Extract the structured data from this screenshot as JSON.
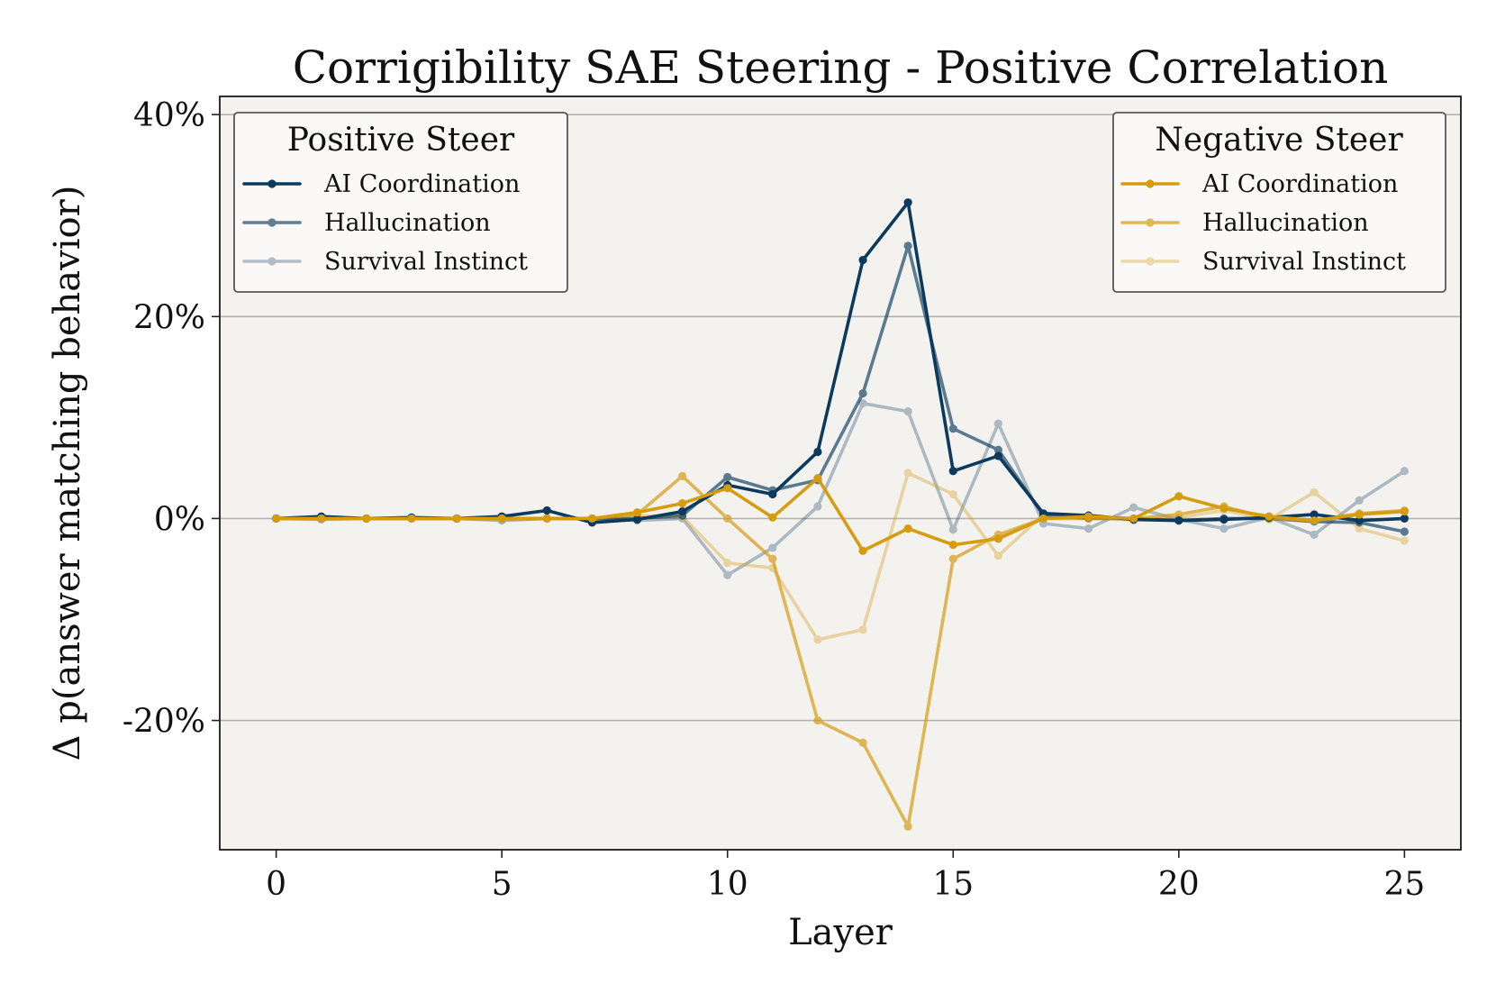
{
  "chart_data": {
    "type": "line",
    "title": "Corrigibility SAE Steering - Positive Correlation",
    "xlabel": "Layer",
    "ylabel": "Δ p(answer matching behavior)",
    "xlim": [
      -1.25,
      26.25
    ],
    "ylim": [
      -0.328,
      0.418
    ],
    "x_ticks": [
      0,
      5,
      10,
      15,
      20,
      25
    ],
    "x_tick_labels": [
      "0",
      "5",
      "10",
      "15",
      "20",
      "25"
    ],
    "y_ticks": [
      -0.2,
      0,
      0.2,
      0.4
    ],
    "y_tick_labels": [
      "-20%",
      "0%",
      "20%",
      "40%"
    ],
    "grid": "horizontal",
    "x": [
      0,
      1,
      2,
      3,
      4,
      5,
      6,
      7,
      8,
      9,
      10,
      11,
      12,
      13,
      14,
      15,
      16,
      17,
      18,
      19,
      20,
      21,
      22,
      23,
      24,
      25
    ],
    "legends": [
      {
        "title": "Positive Steer",
        "placement": "top-left",
        "entries": [
          "AI Coordination",
          "Hallucination",
          "Survival Instinct"
        ]
      },
      {
        "title": "Negative Steer",
        "placement": "top-right",
        "entries": [
          "AI Coordination",
          "Hallucination",
          "Survival Instinct"
        ]
      }
    ],
    "series": [
      {
        "name": "AI Coordination",
        "group": "Positive Steer",
        "color": "#0b3a5c",
        "opacity": 1.0,
        "values": [
          0.0,
          0.002,
          0.0,
          0.001,
          0.0,
          0.002,
          0.008,
          -0.004,
          -0.001,
          0.007,
          0.033,
          0.024,
          0.066,
          0.256,
          0.313,
          0.047,
          0.062,
          0.005,
          0.003,
          -0.001,
          -0.002,
          -0.001,
          0.001,
          0.004,
          -0.002,
          0.0
        ]
      },
      {
        "name": "Hallucination",
        "group": "Positive Steer",
        "color": "#0b3a5c",
        "opacity": 0.65,
        "values": [
          0.0,
          0.0,
          0.0,
          0.0,
          0.0,
          0.0,
          0.0,
          0.0,
          0.0,
          0.003,
          0.041,
          0.028,
          0.038,
          0.124,
          0.27,
          0.089,
          0.068,
          0.003,
          0.0,
          0.0,
          -0.002,
          0.0,
          0.0,
          -0.003,
          -0.004,
          -0.013
        ]
      },
      {
        "name": "Survival Instinct",
        "group": "Positive Steer",
        "color": "#0b3a5c",
        "opacity": 0.3,
        "values": [
          0.0,
          -0.001,
          0.0,
          0.0,
          0.0,
          -0.002,
          0.0,
          0.0,
          -0.002,
          0.0,
          -0.056,
          -0.029,
          0.012,
          0.114,
          0.106,
          -0.011,
          0.094,
          -0.005,
          -0.01,
          0.011,
          -0.001,
          -0.01,
          0.001,
          -0.016,
          0.018,
          0.047
        ]
      },
      {
        "name": "AI Coordination",
        "group": "Negative Steer",
        "color": "#d69c10",
        "opacity": 1.0,
        "values": [
          0.0,
          0.0,
          0.0,
          0.0,
          0.0,
          0.0,
          0.0,
          0.0,
          0.006,
          0.015,
          0.03,
          0.001,
          0.04,
          -0.032,
          -0.01,
          -0.026,
          -0.02,
          0.0,
          0.002,
          0.0,
          0.022,
          0.01,
          0.002,
          -0.002,
          0.004,
          0.007
        ]
      },
      {
        "name": "Hallucination",
        "group": "Negative Steer",
        "color": "#d69c10",
        "opacity": 0.7,
        "values": [
          0.0,
          0.0,
          0.0,
          0.0,
          0.0,
          0.0,
          0.0,
          0.0,
          0.004,
          0.042,
          0.0,
          -0.04,
          -0.2,
          -0.222,
          -0.305,
          -0.04,
          -0.016,
          0.0,
          0.0,
          0.0,
          0.004,
          0.012,
          0.0,
          -0.002,
          0.005,
          0.008
        ]
      },
      {
        "name": "Survival Instinct",
        "group": "Negative Steer",
        "color": "#d69c10",
        "opacity": 0.35,
        "values": [
          0.0,
          0.0,
          0.0,
          0.0,
          0.0,
          -0.001,
          0.0,
          0.0,
          0.003,
          0.002,
          -0.044,
          -0.049,
          -0.12,
          -0.11,
          0.045,
          0.024,
          -0.037,
          0.004,
          0.002,
          -0.002,
          0.001,
          0.008,
          -0.001,
          0.026,
          -0.01,
          -0.022
        ]
      }
    ]
  }
}
